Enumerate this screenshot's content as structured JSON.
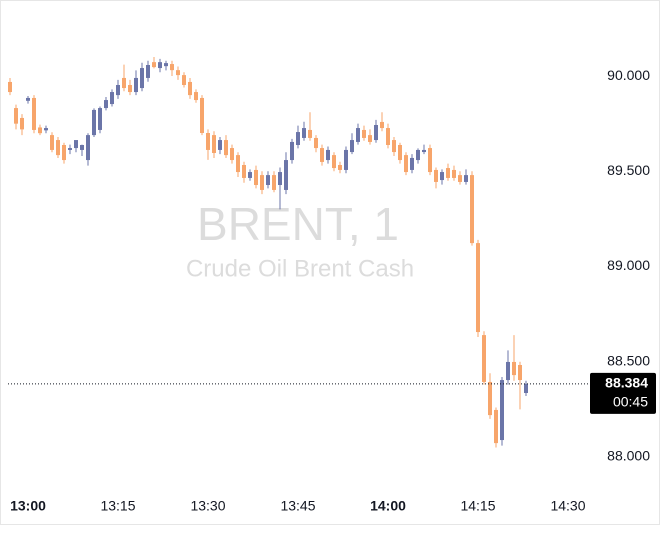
{
  "chart_data": {
    "type": "candlestick",
    "title": "BRENT, 1",
    "subtitle": "Crude Oil Brent Cash",
    "up_color": "#6b75a8",
    "down_color": "#f7a56b",
    "xlim": [
      "12:56",
      "14:34"
    ],
    "xticks": [
      "13:00",
      "13:15",
      "13:30",
      "13:45",
      "14:00",
      "14:15",
      "14:30"
    ],
    "ylim": [
      87.853,
      90.373
    ],
    "yticks": [
      {
        "value": 88,
        "label": "88.000"
      },
      {
        "value": 88.5,
        "label": "88.500"
      },
      {
        "value": 89,
        "label": "89.000"
      },
      {
        "value": 89.5,
        "label": "89.500"
      },
      {
        "value": 90,
        "label": "90.000"
      }
    ],
    "last_price": {
      "value": 88.384,
      "label": "88.384"
    },
    "countdown": "00:45",
    "x": [
      "12:57",
      "12:58",
      "12:59",
      "13:00",
      "13:01",
      "13:02",
      "13:03",
      "13:04",
      "13:05",
      "13:06",
      "13:07",
      "13:08",
      "13:09",
      "13:10",
      "13:11",
      "13:12",
      "13:13",
      "13:14",
      "13:15",
      "13:16",
      "13:17",
      "13:18",
      "13:19",
      "13:20",
      "13:21",
      "13:22",
      "13:23",
      "13:24",
      "13:25",
      "13:26",
      "13:27",
      "13:28",
      "13:29",
      "13:30",
      "13:31",
      "13:32",
      "13:33",
      "13:34",
      "13:35",
      "13:36",
      "13:37",
      "13:38",
      "13:39",
      "13:40",
      "13:41",
      "13:42",
      "13:43",
      "13:44",
      "13:45",
      "13:46",
      "13:47",
      "13:48",
      "13:49",
      "13:50",
      "13:51",
      "13:52",
      "13:53",
      "13:54",
      "13:55",
      "13:56",
      "13:57",
      "13:58",
      "13:59",
      "14:00",
      "14:01",
      "14:02",
      "14:03",
      "14:04",
      "14:05",
      "14:06",
      "14:07",
      "14:08",
      "14:09",
      "14:10",
      "14:11",
      "14:12",
      "14:13",
      "14:14",
      "14:15",
      "14:16",
      "14:17",
      "14:18",
      "14:19",
      "14:20",
      "14:21",
      "14:22",
      "14:23"
    ],
    "open": [
      89.969,
      89.832,
      89.78,
      89.87,
      89.885,
      89.73,
      89.715,
      89.69,
      89.664,
      89.638,
      89.612,
      89.622,
      89.612,
      89.559,
      89.69,
      89.717,
      89.832,
      89.853,
      89.9,
      89.99,
      89.953,
      89.916,
      89.937,
      89.99,
      90.073,
      90.042,
      90.052,
      90.063,
      90.031,
      90.005,
      89.969,
      89.916,
      89.885,
      89.701,
      89.69,
      89.612,
      89.664,
      89.622,
      89.585,
      89.533,
      89.465,
      89.507,
      89.48,
      89.428,
      89.48,
      89.428,
      89.402,
      89.559,
      89.638,
      89.675,
      89.717,
      89.675,
      89.622,
      89.559,
      89.585,
      89.533,
      89.507,
      89.601,
      89.654,
      89.717,
      89.69,
      89.664,
      89.759,
      89.727,
      89.664,
      89.638,
      89.585,
      89.507,
      89.559,
      89.601,
      89.622,
      89.507,
      89.454,
      89.517,
      89.507,
      89.48,
      89.444,
      89.48,
      89.123,
      88.64,
      88.394,
      88.247,
      88.089,
      88.404,
      88.499,
      88.483,
      88.336
    ],
    "high": [
      89.99,
      89.85,
      89.8,
      89.895,
      89.9,
      89.745,
      89.74,
      89.705,
      89.68,
      89.65,
      89.64,
      89.65,
      89.64,
      89.7,
      89.83,
      89.84,
      89.89,
      89.93,
      89.98,
      90.06,
      89.98,
      90.03,
      90.07,
      90.08,
      90.1,
      90.09,
      90.08,
      90.08,
      90.05,
      90.02,
      89.99,
      89.93,
      89.9,
      89.72,
      89.71,
      89.68,
      89.69,
      89.64,
      89.6,
      89.55,
      89.51,
      89.53,
      89.5,
      89.5,
      89.5,
      89.52,
      89.6,
      89.67,
      89.74,
      89.76,
      89.81,
      89.69,
      89.64,
      89.63,
      89.6,
      89.55,
      89.63,
      89.7,
      89.75,
      89.74,
      89.72,
      89.77,
      89.81,
      89.75,
      89.68,
      89.65,
      89.6,
      89.59,
      89.62,
      89.64,
      89.64,
      89.52,
      89.51,
      89.54,
      89.53,
      89.5,
      89.51,
      89.5,
      89.14,
      88.66,
      88.44,
      88.26,
      88.42,
      88.56,
      88.64,
      88.5,
      88.4
    ],
    "low": [
      89.9,
      89.72,
      89.69,
      89.855,
      89.7,
      89.69,
      89.7,
      89.6,
      89.57,
      89.54,
      89.59,
      89.6,
      89.58,
      89.53,
      89.68,
      89.7,
      89.82,
      89.84,
      89.88,
      89.92,
      89.9,
      89.9,
      89.92,
      89.97,
      90.04,
      90.02,
      90.03,
      90.0,
      89.98,
      89.94,
      89.88,
      89.86,
      89.69,
      89.56,
      89.57,
      89.59,
      89.57,
      89.54,
      89.47,
      89.44,
      89.45,
      89.41,
      89.38,
      89.41,
      89.39,
      89.3,
      89.38,
      89.54,
      89.62,
      89.66,
      89.66,
      89.6,
      89.53,
      89.54,
      89.5,
      89.49,
      89.49,
      89.59,
      89.64,
      89.66,
      89.64,
      89.65,
      89.71,
      89.62,
      89.58,
      89.54,
      89.48,
      89.49,
      89.54,
      89.59,
      89.48,
      89.41,
      89.43,
      89.45,
      89.45,
      89.43,
      89.43,
      89.11,
      88.63,
      88.38,
      88.2,
      88.05,
      88.06,
      88.38,
      88.4,
      88.25,
      88.32
    ],
    "close": [
      89.916,
      89.75,
      89.72,
      89.885,
      89.717,
      89.7,
      89.727,
      89.612,
      89.585,
      89.559,
      89.622,
      89.664,
      89.638,
      89.69,
      89.822,
      89.832,
      89.874,
      89.916,
      89.953,
      89.937,
      89.916,
      89.99,
      90.042,
      90.058,
      90.047,
      90.073,
      90.068,
      90.031,
      90.005,
      89.953,
      89.9,
      89.874,
      89.701,
      89.612,
      89.596,
      89.664,
      89.585,
      89.559,
      89.496,
      89.465,
      89.496,
      89.428,
      89.402,
      89.48,
      89.402,
      89.496,
      89.559,
      89.654,
      89.706,
      89.727,
      89.675,
      89.622,
      89.549,
      89.612,
      89.517,
      89.507,
      89.612,
      89.664,
      89.727,
      89.675,
      89.654,
      89.743,
      89.727,
      89.638,
      89.601,
      89.559,
      89.496,
      89.57,
      89.612,
      89.612,
      89.496,
      89.444,
      89.496,
      89.465,
      89.465,
      89.444,
      89.48,
      89.123,
      88.656,
      88.394,
      88.22,
      88.073,
      88.404,
      88.499,
      88.43,
      88.404,
      88.384
    ]
  }
}
